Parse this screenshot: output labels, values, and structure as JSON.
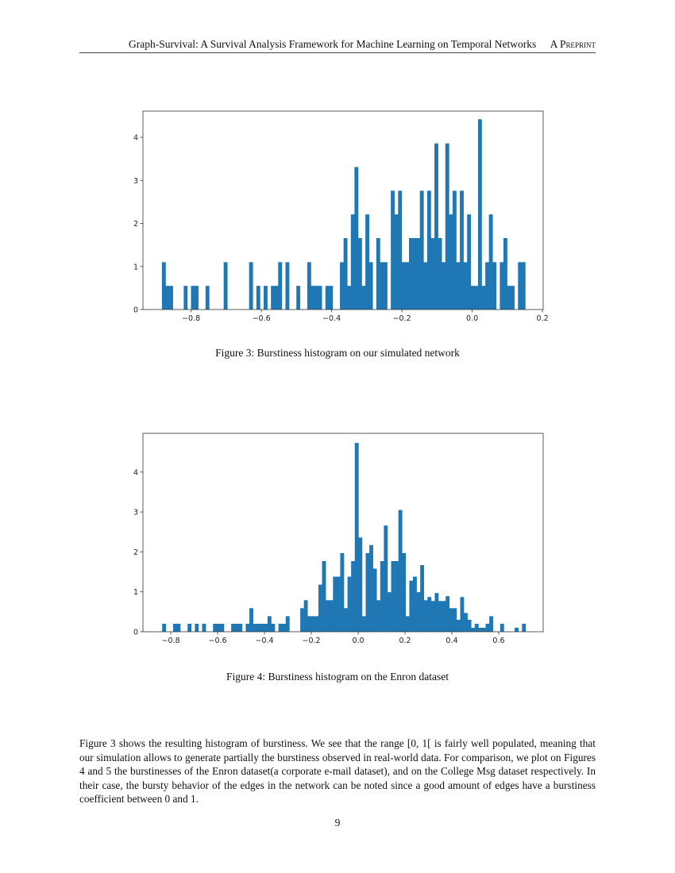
{
  "header": {
    "title": "Graph-Survival: A Survival Analysis Framework for Machine Learning on Temporal Networks",
    "tag": "A Preprint"
  },
  "figures": [
    {
      "caption": "Figure 3: Burstiness histogram on our simulated network"
    },
    {
      "caption": "Figure 4: Burstiness histogram on the Enron dataset"
    }
  ],
  "paragraph": "Figure 3 shows the resulting histogram of burstiness. We see that the range [0, 1[ is fairly well populated, meaning that our simulation allows to generate partially the burstiness observed in real-world data. For comparison, we plot on Figures 4 and 5 the burstinesses of the Enron dataset(a corporate e-mail dataset), and on the College Msg dataset respectively. In their case, the bursty behavior of the edges in the network can be noted since a good amount of edges have a burstiness coefficient between 0 and 1.",
  "page_number": "9",
  "chart_data": [
    {
      "type": "bar",
      "subtype": "histogram",
      "color": "#1f77b4",
      "bins": 100,
      "bin_range": [
        -0.883,
        0.151
      ],
      "xlim": [
        -0.937,
        0.202
      ],
      "ylim": [
        0,
        4.61
      ],
      "xticks": [
        "−0.8",
        "−0.6",
        "−0.4",
        "−0.2",
        "0.0",
        "0.2"
      ],
      "xtick_values": [
        -0.8,
        -0.6,
        -0.4,
        -0.2,
        0.0,
        0.2
      ],
      "yticks": [
        "0",
        "1",
        "2",
        "3",
        "4"
      ],
      "ytick_values": [
        0,
        1,
        2,
        3,
        4
      ],
      "grid": false,
      "values": [
        1.1,
        0.55,
        0.55,
        0,
        0,
        0,
        0.55,
        0,
        0.55,
        0.55,
        0,
        0,
        0.55,
        0,
        0,
        0,
        0,
        1.1,
        0,
        0,
        0,
        0,
        0,
        0,
        1.1,
        0,
        0.55,
        0,
        0.55,
        0,
        0.55,
        0.55,
        1.1,
        0,
        1.1,
        0,
        0,
        0.55,
        0,
        0,
        1.1,
        0.55,
        0.55,
        0.55,
        0,
        0.55,
        0.55,
        0,
        0,
        1.1,
        1.66,
        0.55,
        2.21,
        3.31,
        1.66,
        0.55,
        2.21,
        1.1,
        0,
        1.66,
        1.1,
        1.1,
        0,
        2.76,
        2.21,
        2.76,
        1.1,
        1.1,
        1.66,
        1.66,
        1.66,
        2.76,
        1.1,
        2.76,
        1.66,
        3.86,
        1.66,
        1.1,
        3.86,
        2.21,
        2.76,
        1.1,
        2.76,
        1.1,
        2.21,
        0.55,
        0.55,
        4.42,
        0.55,
        1.1,
        2.21,
        1.1,
        0,
        1.1,
        1.66,
        0.55,
        0.55,
        0,
        1.1,
        1.1
      ]
    },
    {
      "type": "bar",
      "subtype": "histogram",
      "color": "#1f77b4",
      "bins": 100,
      "bin_range": [
        -0.837,
        0.715
      ],
      "xlim": [
        -0.919,
        0.79
      ],
      "ylim": [
        0,
        4.97
      ],
      "xticks": [
        "−0.8",
        "−0.6",
        "−0.4",
        "−0.2",
        "0.0",
        "0.2",
        "0.4",
        "0.6"
      ],
      "xtick_values": [
        -0.8,
        -0.6,
        -0.4,
        -0.2,
        0.0,
        0.2,
        0.4,
        0.6
      ],
      "yticks": [
        "0",
        "1",
        "2",
        "3",
        "4"
      ],
      "ytick_values": [
        0,
        1,
        2,
        3,
        4
      ],
      "grid": false,
      "values": [
        0.2,
        0,
        0,
        0.2,
        0.2,
        0,
        0,
        0.2,
        0,
        0.2,
        0,
        0.2,
        0,
        0,
        0.2,
        0.2,
        0.2,
        0,
        0,
        0.2,
        0.2,
        0.2,
        0,
        0.2,
        0.59,
        0.2,
        0.2,
        0.2,
        0.2,
        0.39,
        0.2,
        0,
        0.2,
        0.2,
        0.39,
        0,
        0,
        0,
        0.59,
        0.79,
        0.39,
        0.39,
        0.39,
        1.18,
        1.77,
        0.79,
        0.79,
        1.38,
        1.38,
        1.97,
        0.59,
        1.38,
        1.77,
        4.73,
        2.36,
        0.39,
        1.97,
        2.17,
        1.58,
        0.79,
        1.77,
        2.66,
        0.99,
        1.77,
        1.77,
        3.05,
        1.97,
        0.39,
        1.28,
        1.38,
        0.99,
        1.67,
        0.79,
        0.87,
        0.77,
        0.97,
        0.77,
        0.77,
        0.89,
        0.59,
        0.59,
        0.3,
        0.87,
        0.47,
        0.3,
        0.1,
        0.2,
        0.1,
        0.1,
        0.2,
        0.39,
        0,
        0,
        0.2,
        0,
        0,
        0,
        0.1,
        0,
        0.2
      ]
    }
  ]
}
